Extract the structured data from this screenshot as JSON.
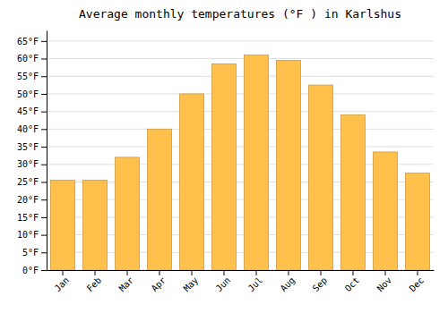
{
  "chart_data": {
    "type": "bar",
    "title": "Average monthly temperatures (°F ) in Karlshus",
    "categories": [
      "Jan",
      "Feb",
      "Mar",
      "Apr",
      "May",
      "Jun",
      "Jul",
      "Aug",
      "Sep",
      "Oct",
      "Nov",
      "Dec"
    ],
    "values": [
      25.5,
      25.5,
      32.0,
      40.0,
      50.0,
      58.5,
      61.0,
      59.5,
      52.5,
      44.0,
      33.5,
      27.5
    ],
    "color": "#FFC04C",
    "ylim": [
      0,
      68
    ],
    "yticks": [
      {
        "value": 0,
        "label": "0°F"
      },
      {
        "value": 5,
        "label": "5°F"
      },
      {
        "value": 10,
        "label": "10°F"
      },
      {
        "value": 15,
        "label": "15°F"
      },
      {
        "value": 20,
        "label": "20°F"
      },
      {
        "value": 25,
        "label": "25°F"
      },
      {
        "value": 30,
        "label": "30°F"
      },
      {
        "value": 35,
        "label": "35°F"
      },
      {
        "value": 40,
        "label": "40°F"
      },
      {
        "value": 45,
        "label": "45°F"
      },
      {
        "value": 50,
        "label": "50°F"
      },
      {
        "value": 55,
        "label": "55°F"
      },
      {
        "value": 60,
        "label": "60°F"
      },
      {
        "value": 65,
        "label": "65°F"
      }
    ],
    "grid": true
  }
}
